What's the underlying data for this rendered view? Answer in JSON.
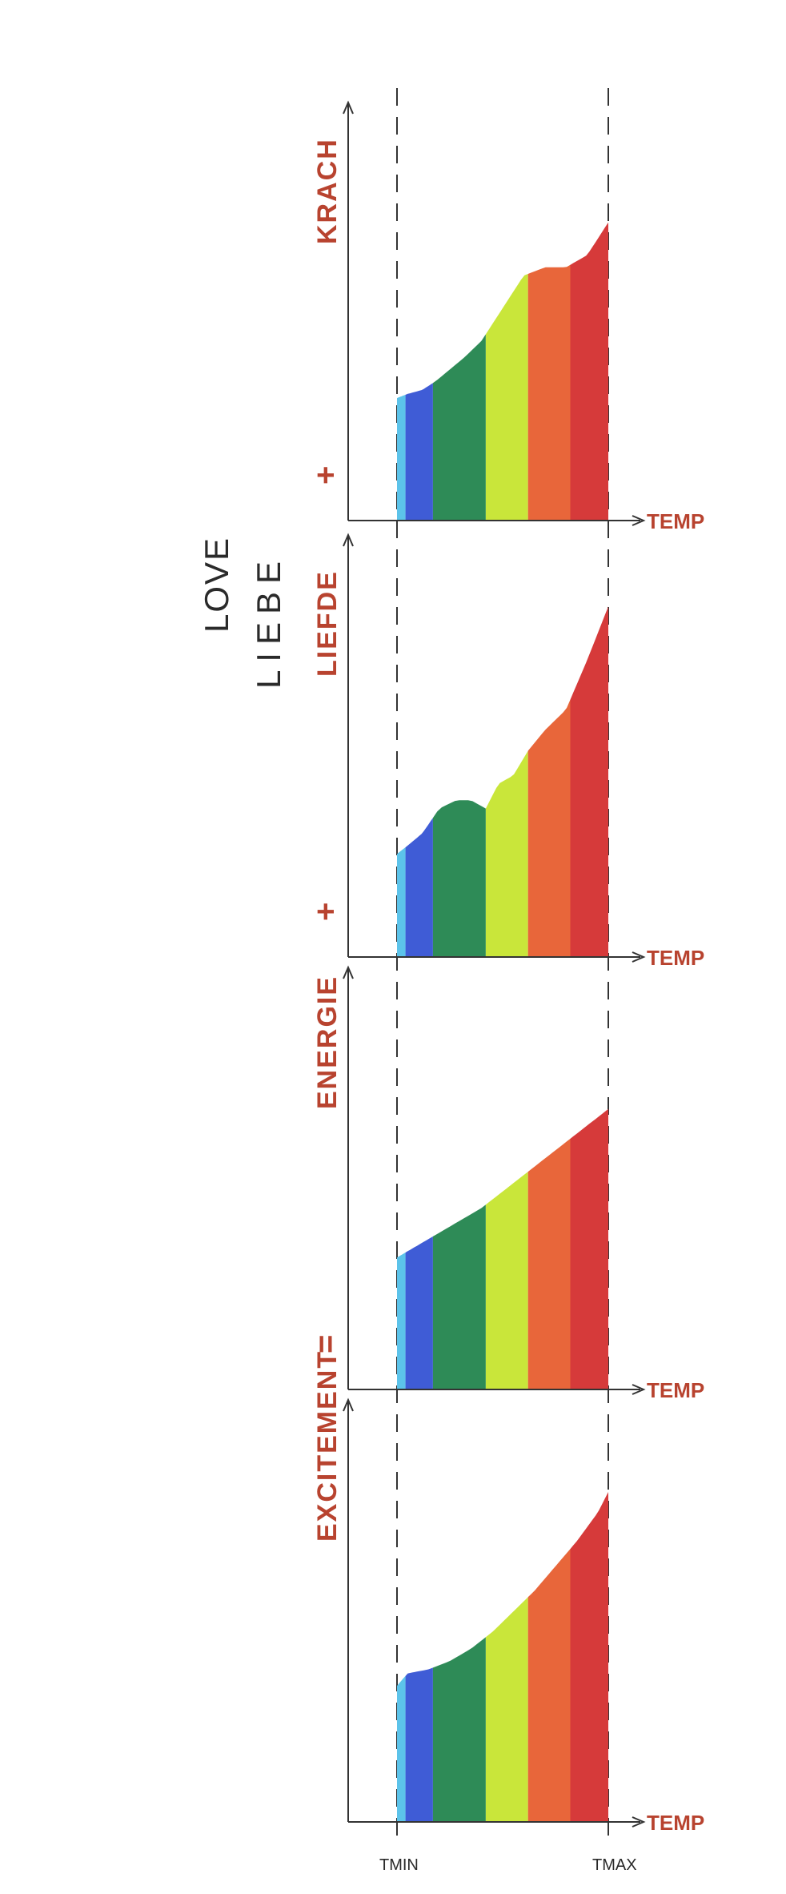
{
  "heading": {
    "line1": "LOVE",
    "line2": "LIEBE"
  },
  "colors": {
    "label": "#b8432f",
    "axis": "#333333",
    "bands": [
      "#5cc3ea",
      "#3f5cd6",
      "#2e8b57",
      "#c9e63a",
      "#e8663a",
      "#d63a3a"
    ]
  },
  "x_axis": {
    "label": "TEMP",
    "tmin_label": "TMIN",
    "tmax_label": "TMAX"
  },
  "chart_data": [
    {
      "type": "area",
      "ylabel": "KRACH",
      "sign": "+",
      "xlabel": "TEMP",
      "x": [
        0,
        0.05,
        0.12,
        0.18,
        0.25,
        0.32,
        0.4,
        0.5,
        0.6,
        0.7,
        0.8,
        0.9,
        1.0
      ],
      "y": [
        0.3,
        0.31,
        0.32,
        0.34,
        0.37,
        0.4,
        0.44,
        0.52,
        0.6,
        0.62,
        0.62,
        0.65,
        0.73
      ]
    },
    {
      "type": "area",
      "ylabel": "LIEFDE",
      "sign": "+",
      "xlabel": "TEMP",
      "x": [
        0,
        0.05,
        0.12,
        0.2,
        0.28,
        0.35,
        0.42,
        0.48,
        0.55,
        0.62,
        0.7,
        0.8,
        0.9,
        1.0
      ],
      "y": [
        0.25,
        0.27,
        0.3,
        0.36,
        0.38,
        0.38,
        0.36,
        0.42,
        0.44,
        0.5,
        0.55,
        0.6,
        0.72,
        0.85
      ]
    },
    {
      "type": "area",
      "ylabel": "ENERGIE",
      "sign": "=",
      "xlabel": "TEMP",
      "x": [
        0,
        0.1,
        0.2,
        0.3,
        0.4,
        0.5,
        0.6,
        0.7,
        0.8,
        0.9,
        1.0
      ],
      "y": [
        0.32,
        0.35,
        0.38,
        0.41,
        0.44,
        0.48,
        0.52,
        0.56,
        0.6,
        0.64,
        0.68
      ]
    },
    {
      "type": "area",
      "ylabel": "EXCITEMENT",
      "sign": "",
      "xlabel": "TEMP",
      "x": [
        0,
        0.05,
        0.15,
        0.25,
        0.35,
        0.45,
        0.55,
        0.65,
        0.75,
        0.85,
        0.95,
        1.0
      ],
      "y": [
        0.33,
        0.36,
        0.37,
        0.39,
        0.42,
        0.46,
        0.51,
        0.56,
        0.62,
        0.68,
        0.75,
        0.8
      ]
    }
  ]
}
